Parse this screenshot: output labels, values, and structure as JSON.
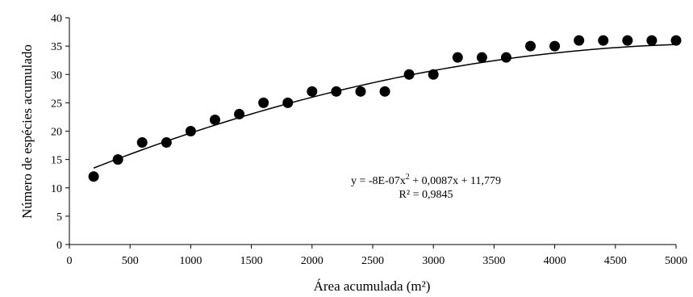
{
  "chart_data": {
    "type": "scatter",
    "title": "",
    "xlabel": "Área acumulada (m²)",
    "ylabel": "Número  de espécies acumulado",
    "xlim": [
      0,
      5000
    ],
    "ylim": [
      0,
      40
    ],
    "x_ticks": [
      0,
      500,
      1000,
      1500,
      2000,
      2500,
      3000,
      3500,
      4000,
      4500,
      5000
    ],
    "y_ticks": [
      0,
      5,
      10,
      15,
      20,
      25,
      30,
      35,
      40
    ],
    "grid": false,
    "legend": "none",
    "marker_color": "#000000",
    "series": [
      {
        "marker": "filled-circle",
        "points": [
          [
            200,
            12
          ],
          [
            400,
            15
          ],
          [
            600,
            18
          ],
          [
            800,
            18
          ],
          [
            1000,
            20
          ],
          [
            1200,
            22
          ],
          [
            1400,
            23
          ],
          [
            1600,
            25
          ],
          [
            1800,
            25
          ],
          [
            2000,
            27
          ],
          [
            2200,
            27
          ],
          [
            2400,
            27
          ],
          [
            2600,
            27
          ],
          [
            2800,
            30
          ],
          [
            3000,
            30
          ],
          [
            3200,
            33
          ],
          [
            3400,
            33
          ],
          [
            3600,
            33
          ],
          [
            3800,
            35
          ],
          [
            4000,
            35
          ],
          [
            4200,
            36
          ],
          [
            4400,
            36
          ],
          [
            4600,
            36
          ],
          [
            4800,
            36
          ],
          [
            5000,
            36
          ]
        ]
      }
    ],
    "trendline": {
      "type": "polynomial",
      "coefficients": {
        "a": -8e-07,
        "b": 0.0087,
        "c": 11.779
      },
      "x_range": [
        200,
        5000
      ]
    },
    "annotations": {
      "equation": {
        "prefix": "y = -8E-07x",
        "exponent": "2",
        "suffix": " + 0,0087x + 11,779"
      },
      "r_squared": "R² = 0,9845"
    }
  }
}
